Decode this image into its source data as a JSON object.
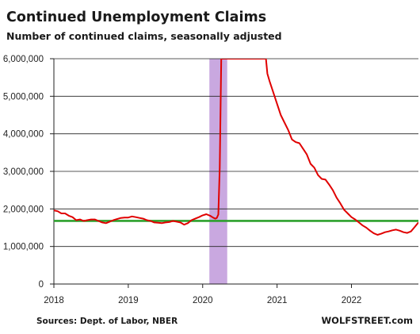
{
  "chart_data": {
    "type": "line",
    "title": "Continued  Unemployment Claims",
    "subtitle": "Number of continued claims, seasonally adjusted",
    "source": "Sources: Dept. of Labor, NBER",
    "brand": "WOLFSTREET.com",
    "ylim": [
      0,
      6000000
    ],
    "xlim": [
      2018.0,
      2022.9
    ],
    "y_ticks": [
      0,
      1000000,
      2000000,
      3000000,
      4000000,
      5000000,
      6000000
    ],
    "y_tick_labels": [
      "0",
      "1,000,000",
      "2,000,000",
      "3,000,000",
      "4,000,000",
      "5,000,000",
      "6,000,000"
    ],
    "x_ticks": [
      2018,
      2019,
      2020,
      2021,
      2022
    ],
    "x_tick_labels": [
      "2018",
      "2019",
      "2020",
      "2021",
      "2022"
    ],
    "grid": true,
    "recession_band": {
      "start": 2020.09,
      "end": 2020.33,
      "color": "#c9a8e0"
    },
    "reference_line": {
      "value": 1680000,
      "color": "#2ca02c"
    },
    "series": [
      {
        "color": "#e00000",
        "x": [
          2018.0,
          2018.05,
          2018.1,
          2018.15,
          2018.2,
          2018.25,
          2018.3,
          2018.35,
          2018.4,
          2018.45,
          2018.5,
          2018.55,
          2018.6,
          2018.65,
          2018.7,
          2018.75,
          2018.8,
          2018.85,
          2018.9,
          2018.95,
          2019.0,
          2019.05,
          2019.1,
          2019.15,
          2019.2,
          2019.25,
          2019.3,
          2019.35,
          2019.4,
          2019.45,
          2019.5,
          2019.55,
          2019.6,
          2019.65,
          2019.7,
          2019.75,
          2019.8,
          2019.85,
          2019.9,
          2019.95,
          2020.0,
          2020.05,
          2020.1,
          2020.13,
          2020.15,
          2020.17,
          2020.19,
          2020.21,
          2020.23,
          2020.25,
          2020.85,
          2020.87,
          2020.9,
          2020.95,
          2021.0,
          2021.05,
          2021.1,
          2021.15,
          2021.2,
          2021.25,
          2021.3,
          2021.35,
          2021.4,
          2021.45,
          2021.5,
          2021.55,
          2021.6,
          2021.65,
          2021.7,
          2021.75,
          2021.8,
          2021.85,
          2021.9,
          2021.95,
          2022.0,
          2022.05,
          2022.1,
          2022.15,
          2022.2,
          2022.25,
          2022.3,
          2022.35,
          2022.4,
          2022.45,
          2022.5,
          2022.55,
          2022.6,
          2022.65,
          2022.7,
          2022.75,
          2022.8,
          2022.85,
          2022.9
        ],
        "y": [
          1960000,
          1940000,
          1880000,
          1880000,
          1820000,
          1780000,
          1700000,
          1720000,
          1680000,
          1700000,
          1720000,
          1720000,
          1680000,
          1640000,
          1620000,
          1660000,
          1700000,
          1730000,
          1760000,
          1770000,
          1770000,
          1800000,
          1780000,
          1760000,
          1740000,
          1700000,
          1680000,
          1640000,
          1630000,
          1620000,
          1640000,
          1650000,
          1680000,
          1660000,
          1640000,
          1580000,
          1620000,
          1700000,
          1740000,
          1780000,
          1830000,
          1860000,
          1820000,
          1780000,
          1760000,
          1740000,
          1760000,
          1850000,
          3100000,
          6000000,
          6000000,
          5600000,
          5400000,
          5100000,
          4800000,
          4500000,
          4300000,
          4100000,
          3850000,
          3780000,
          3750000,
          3600000,
          3450000,
          3200000,
          3100000,
          2900000,
          2800000,
          2780000,
          2650000,
          2500000,
          2300000,
          2150000,
          1980000,
          1880000,
          1780000,
          1720000,
          1640000,
          1560000,
          1500000,
          1420000,
          1350000,
          1310000,
          1340000,
          1380000,
          1400000,
          1430000,
          1450000,
          1420000,
          1380000,
          1360000,
          1400000,
          1520000,
          1640000
        ]
      }
    ]
  }
}
